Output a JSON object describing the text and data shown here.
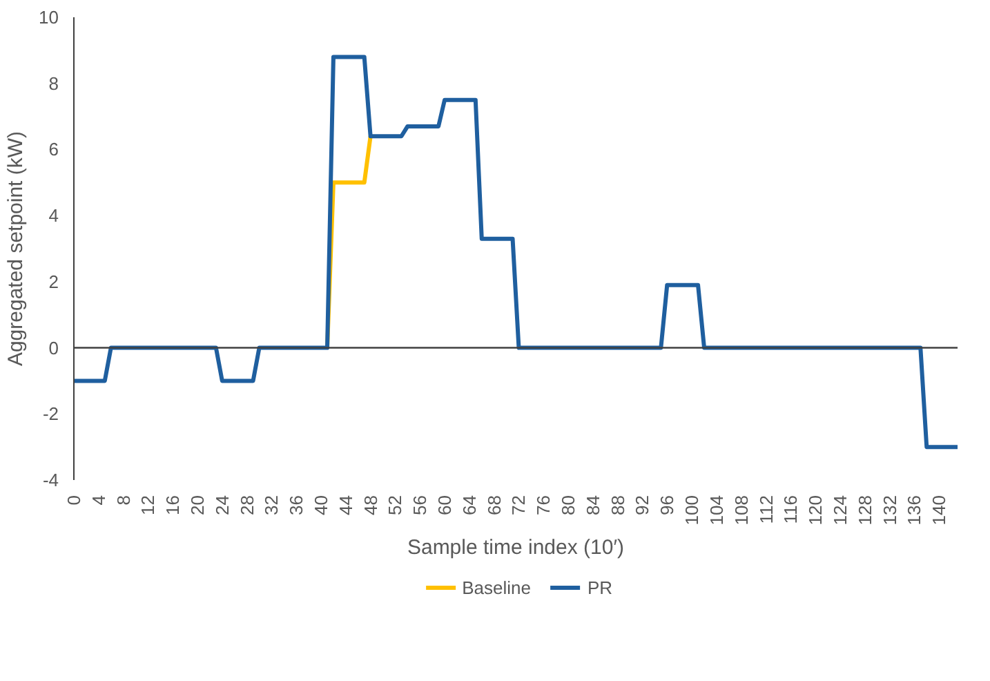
{
  "chart_data": {
    "type": "line",
    "xlabel": "Sample time index (10′)",
    "ylabel": "Aggregated setpoint (kW)",
    "series": [
      {
        "name": "Baseline",
        "color": "#ffc000",
        "x": [
          41,
          42,
          47,
          48
        ],
        "values": [
          0,
          5,
          5,
          6.4
        ]
      },
      {
        "name": "PR",
        "color": "#1f5f9f",
        "x": [
          0,
          5,
          6,
          23,
          24,
          29,
          30,
          41,
          42,
          47,
          48,
          53,
          54,
          59,
          60,
          65,
          66,
          71,
          72,
          95,
          96,
          101,
          102,
          137,
          138,
          143
        ],
        "values": [
          -1,
          -1,
          0,
          0,
          -1,
          -1,
          0,
          0,
          8.8,
          8.8,
          6.4,
          6.4,
          6.7,
          6.7,
          7.5,
          7.5,
          3.3,
          3.3,
          0,
          0,
          1.9,
          1.9,
          0,
          0,
          -3,
          -3
        ]
      }
    ],
    "xlim": [
      0,
      143
    ],
    "xticks": [
      0,
      4,
      8,
      12,
      16,
      20,
      24,
      28,
      32,
      36,
      40,
      44,
      48,
      52,
      56,
      60,
      64,
      68,
      72,
      76,
      80,
      84,
      88,
      92,
      96,
      100,
      104,
      108,
      112,
      116,
      120,
      124,
      128,
      132,
      136,
      140
    ],
    "ylim": [
      -4,
      10
    ],
    "yticks": [
      -4,
      -2,
      0,
      2,
      4,
      6,
      8,
      10
    ],
    "ref_lines": [
      {
        "axis": "y",
        "value": 0,
        "color": "#404040"
      }
    ],
    "grid": false,
    "legend": "bottom",
    "marker": "none",
    "line_style": "solid"
  }
}
